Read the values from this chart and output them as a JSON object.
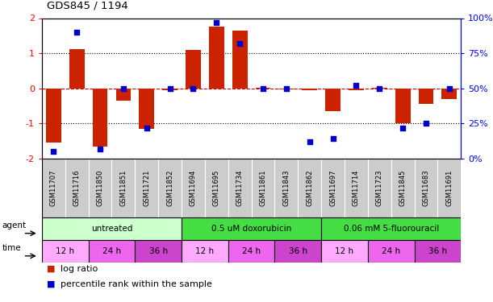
{
  "title": "GDS845 / 1194",
  "samples": [
    "GSM11707",
    "GSM11716",
    "GSM11850",
    "GSM11851",
    "GSM11721",
    "GSM11852",
    "GSM11694",
    "GSM11695",
    "GSM11734",
    "GSM11861",
    "GSM11843",
    "GSM11862",
    "GSM11697",
    "GSM11714",
    "GSM11723",
    "GSM11845",
    "GSM11683",
    "GSM11691"
  ],
  "log_ratios": [
    -1.55,
    1.12,
    -1.65,
    -0.35,
    -1.15,
    -0.05,
    1.1,
    1.75,
    1.65,
    0.02,
    -0.03,
    -0.05,
    -0.65,
    -0.05,
    0.02,
    -1.0,
    -0.45,
    -0.3
  ],
  "percentile_ranks": [
    5,
    90,
    7,
    50,
    22,
    50,
    50,
    97,
    82,
    50,
    50,
    12,
    14,
    52,
    50,
    22,
    25,
    50
  ],
  "bar_color": "#cc2200",
  "dot_color": "#0000cc",
  "ylim_left": [
    -2,
    2
  ],
  "ylim_right": [
    0,
    100
  ],
  "yticks_left": [
    -2,
    -1,
    0,
    1,
    2
  ],
  "yticks_right": [
    0,
    25,
    50,
    75,
    100
  ],
  "yticklabels_right": [
    "0%",
    "25%",
    "50%",
    "75%",
    "100%"
  ],
  "hline_color": "#cc0000",
  "dotline_color": "black",
  "agents": [
    {
      "label": "untreated",
      "start": 0,
      "end": 6,
      "color": "#ccffcc"
    },
    {
      "label": "0.5 uM doxorubicin",
      "start": 6,
      "end": 12,
      "color": "#44dd44"
    },
    {
      "label": "0.06 mM 5-fluorouracil",
      "start": 12,
      "end": 18,
      "color": "#44dd44"
    }
  ],
  "times": [
    {
      "label": "12 h",
      "start": 0,
      "end": 2,
      "color": "#ffaaff"
    },
    {
      "label": "24 h",
      "start": 2,
      "end": 4,
      "color": "#ee66ee"
    },
    {
      "label": "36 h",
      "start": 4,
      "end": 6,
      "color": "#cc44cc"
    },
    {
      "label": "12 h",
      "start": 6,
      "end": 8,
      "color": "#ffaaff"
    },
    {
      "label": "24 h",
      "start": 8,
      "end": 10,
      "color": "#ee66ee"
    },
    {
      "label": "36 h",
      "start": 10,
      "end": 12,
      "color": "#cc44cc"
    },
    {
      "label": "12 h",
      "start": 12,
      "end": 14,
      "color": "#ffaaff"
    },
    {
      "label": "24 h",
      "start": 14,
      "end": 16,
      "color": "#ee66ee"
    },
    {
      "label": "36 h",
      "start": 16,
      "end": 18,
      "color": "#cc44cc"
    }
  ],
  "background_color": "#ffffff",
  "sample_label_bg": "#cccccc",
  "legend_red_label": "log ratio",
  "legend_blue_label": "percentile rank within the sample"
}
